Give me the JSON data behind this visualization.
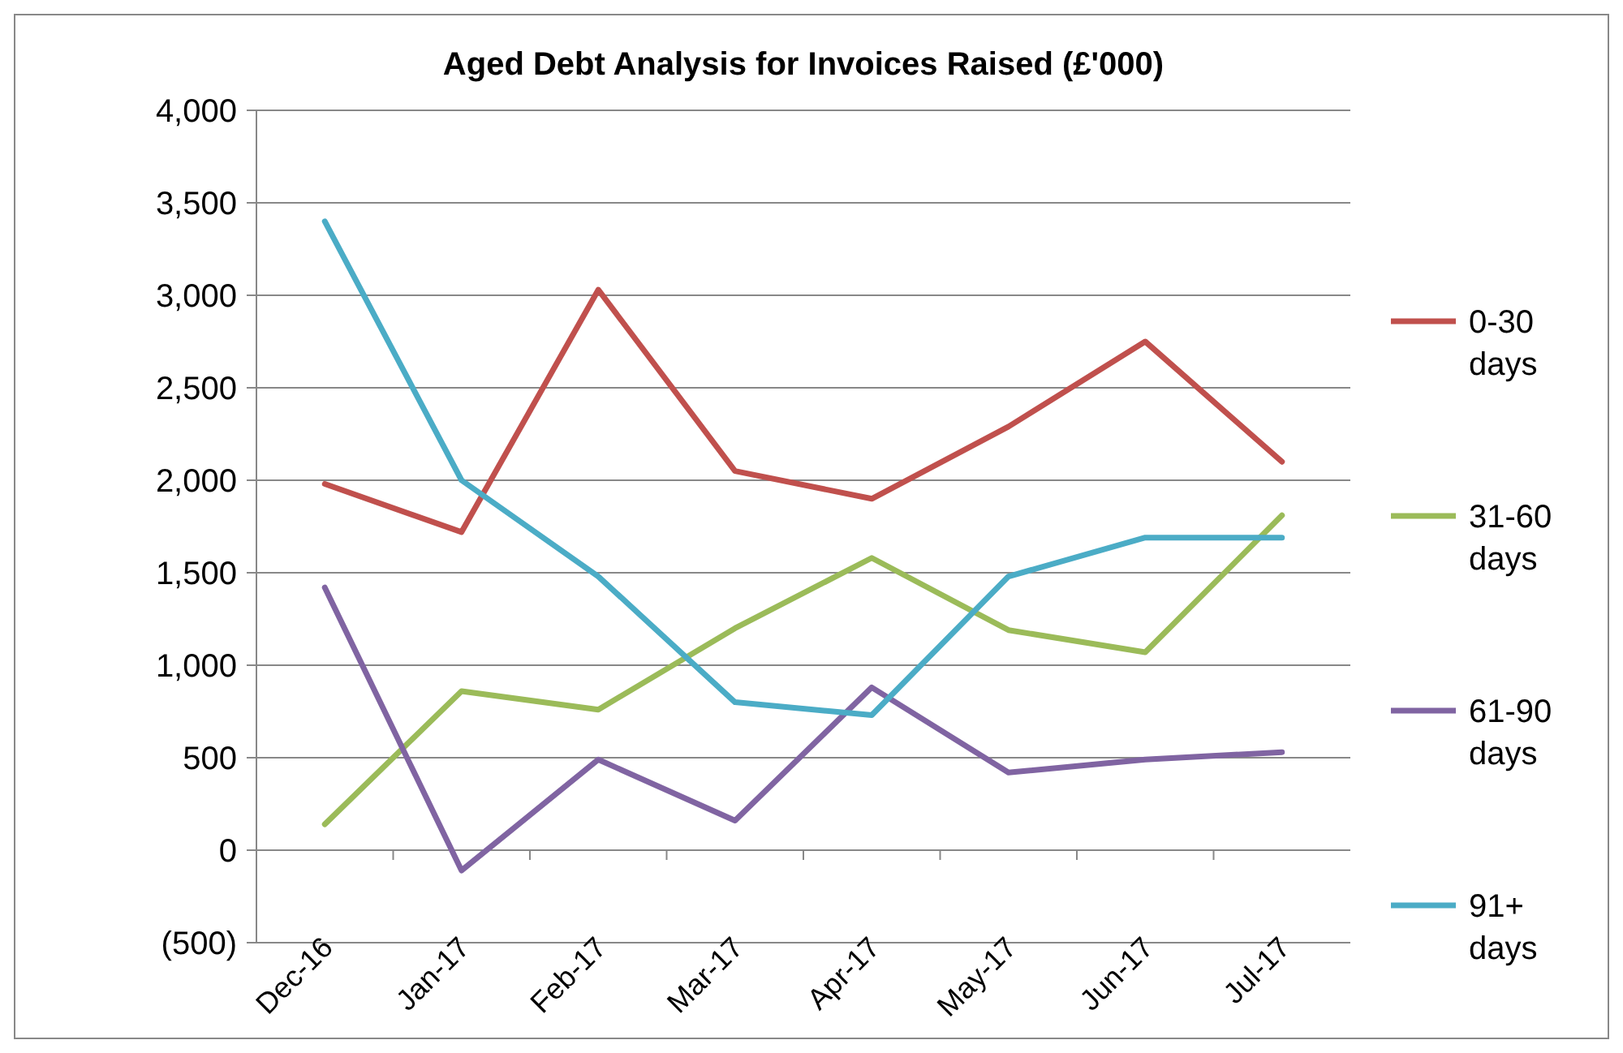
{
  "chart_data": {
    "type": "line",
    "title": "Aged Debt Analysis for Invoices Raised (£'000)",
    "categories": [
      "Dec-16",
      "Jan-17",
      "Feb-17",
      "Mar-17",
      "Apr-17",
      "May-17",
      "Jun-17",
      "Jul-17"
    ],
    "series": [
      {
        "name": "0-30 days",
        "color": "#c0504d",
        "values": [
          1980,
          1720,
          3030,
          2050,
          1900,
          2290,
          2750,
          2100
        ]
      },
      {
        "name": "31-60 days",
        "color": "#9bbb59",
        "values": [
          140,
          860,
          760,
          1200,
          1580,
          1190,
          1070,
          1810
        ]
      },
      {
        "name": "61-90 days",
        "color": "#8064a2",
        "values": [
          1420,
          -110,
          490,
          160,
          880,
          420,
          490,
          530
        ]
      },
      {
        "name": "91+ days",
        "color": "#4bacc6",
        "values": [
          3400,
          2000,
          1480,
          800,
          730,
          1480,
          1690,
          1690
        ]
      }
    ],
    "ylim": [
      -500,
      4000
    ],
    "yticks": [
      {
        "value": -500,
        "label": "(500)"
      },
      0,
      500,
      {
        "value": 1000,
        "label": "1,000"
      },
      {
        "value": 1500,
        "label": "1,500"
      },
      {
        "value": 2000,
        "label": "2,000"
      },
      {
        "value": 2500,
        "label": "2,500"
      },
      {
        "value": 3000,
        "label": "3,000"
      },
      {
        "value": 3500,
        "label": "3,500"
      },
      {
        "value": 4000,
        "label": "4,000"
      }
    ],
    "grid": "y",
    "legend": "right",
    "marker": "none",
    "line_style": "solid"
  }
}
